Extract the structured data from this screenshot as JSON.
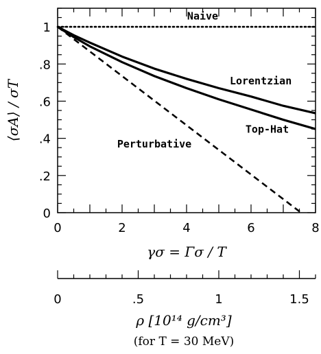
{
  "chart_data": {
    "type": "line",
    "x_range": [
      0,
      8
    ],
    "y_range": [
      0,
      1.1
    ],
    "x_ticks": [
      "0",
      "2",
      "4",
      "6",
      "8"
    ],
    "y_ticks": [
      "0",
      ".2",
      ".4",
      ".6",
      ".8",
      "1"
    ],
    "xlabel": "γσ = Γσ / T",
    "ylabel": "⟨σA⟩ / σT",
    "secondary_axis": {
      "ticks": [
        "0",
        ".5",
        "1",
        "1.5"
      ],
      "tick_values": [
        0,
        0.5,
        1,
        1.5
      ],
      "xlabel": "ρ  [10¹⁴ g/cm³]",
      "note": "(for  T = 30 MeV)"
    },
    "series": [
      {
        "name": "Naive",
        "style": "dotted",
        "x": [
          0,
          1,
          2,
          3,
          4,
          5,
          6,
          7,
          8
        ],
        "y": [
          1,
          1,
          1,
          1,
          1,
          1,
          1,
          1,
          1
        ]
      },
      {
        "name": "Lorentzian",
        "style": "solid",
        "x": [
          0,
          0.5,
          1,
          2,
          3,
          4,
          5,
          6,
          7,
          8
        ],
        "y": [
          1,
          0.955,
          0.915,
          0.84,
          0.775,
          0.72,
          0.67,
          0.625,
          0.575,
          0.535
        ]
      },
      {
        "name": "Top-Hat",
        "style": "solid",
        "x": [
          0,
          0.5,
          1,
          2,
          3,
          4,
          5,
          6,
          7,
          8
        ],
        "y": [
          1,
          0.945,
          0.895,
          0.81,
          0.735,
          0.67,
          0.61,
          0.555,
          0.5,
          0.45
        ]
      },
      {
        "name": "Perturbative",
        "style": "dashed",
        "x": [
          0,
          7.55
        ],
        "y": [
          1,
          0
        ]
      }
    ],
    "annotations": [
      {
        "text": "Naive",
        "x": 4.5,
        "y": 1.04
      },
      {
        "text": "Lorentzian",
        "x": 6.3,
        "y": 0.69
      },
      {
        "text": "Top-Hat",
        "x": 6.5,
        "y": 0.43
      },
      {
        "text": "Perturbative",
        "x": 3.0,
        "y": 0.35
      }
    ]
  }
}
